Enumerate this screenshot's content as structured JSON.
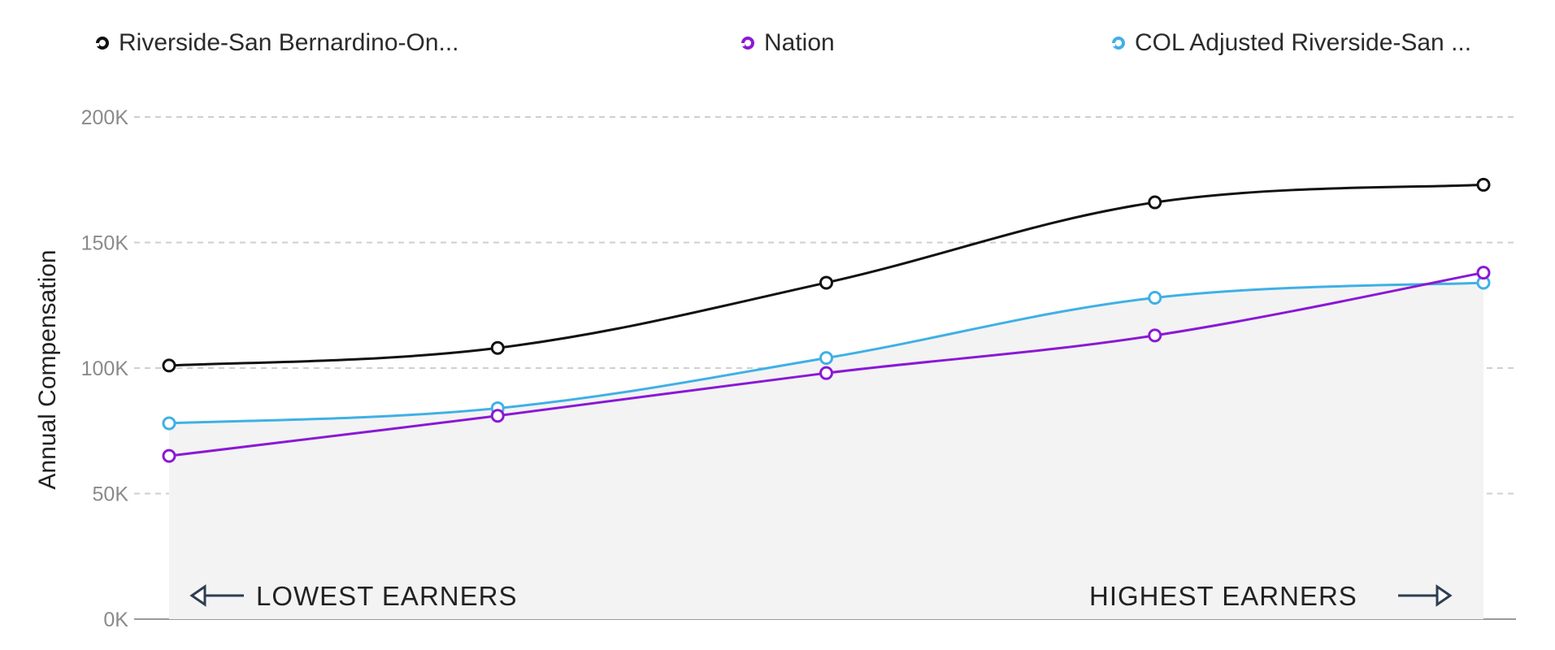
{
  "legend": {
    "items": [
      {
        "label": "Riverside-San Bernardino-On...",
        "color": "#111111"
      },
      {
        "label": "Nation",
        "color": "#8a18d6"
      },
      {
        "label": "COL Adjusted Riverside-San ...",
        "color": "#3fb0e6"
      }
    ]
  },
  "chart_data": {
    "type": "line",
    "x": [
      1,
      2,
      3,
      4,
      5
    ],
    "series": [
      {
        "name": "Riverside-San Bernardino-On...",
        "color": "#111111",
        "values": [
          101000,
          108000,
          134000,
          166000,
          173000
        ]
      },
      {
        "name": "Nation",
        "color": "#8a18d6",
        "values": [
          65000,
          81000,
          98000,
          113000,
          138000
        ]
      },
      {
        "name": "COL Adjusted Riverside-San ...",
        "color": "#3fb0e6",
        "values": [
          78000,
          84000,
          104000,
          128000,
          134000
        ]
      }
    ],
    "ylabel": "Annual Compensation",
    "yticks": [
      "0K",
      "50K",
      "100K",
      "150K",
      "200K"
    ],
    "ytick_values": [
      0,
      50000,
      100000,
      150000,
      200000
    ],
    "ylim": [
      0,
      200000
    ],
    "grid": true,
    "legend_position": "top",
    "annotations": {
      "left": "LOWEST EARNERS",
      "right": "HIGHEST EARNERS"
    },
    "area_fill_color": "#f3f3f3"
  }
}
